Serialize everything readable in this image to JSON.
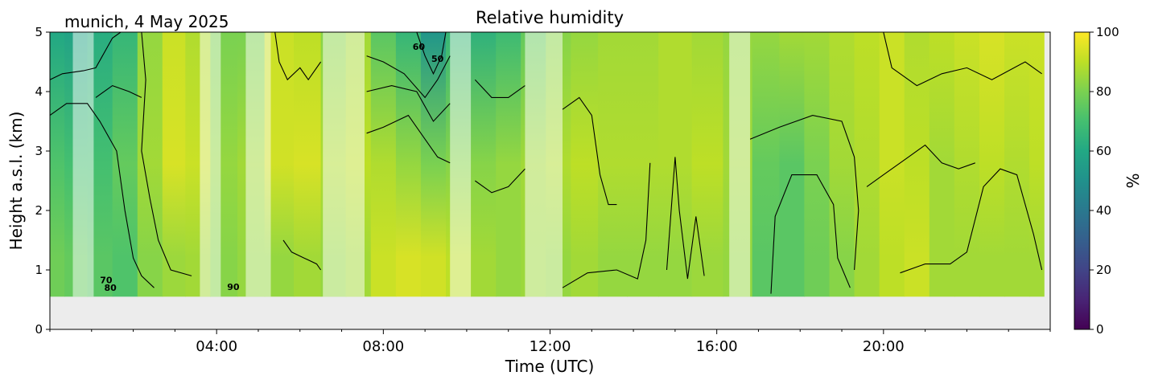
{
  "location_date": "munich, 4 May 2025",
  "chart_data": {
    "type": "heatmap",
    "title": "Relative humidity",
    "xlabel": "Time (UTC)",
    "ylabel": "Height a.s.l. (km)",
    "x_unit": "hours UTC",
    "xlim": [
      0,
      24
    ],
    "ylim": [
      0,
      5
    ],
    "x_ticks": [
      {
        "value": 4,
        "label": "04:00"
      },
      {
        "value": 8,
        "label": "08:00"
      },
      {
        "value": 12,
        "label": "12:00"
      },
      {
        "value": 16,
        "label": "16:00"
      },
      {
        "value": 20,
        "label": "20:00"
      }
    ],
    "y_ticks": [
      {
        "value": 0,
        "label": "0"
      },
      {
        "value": 1,
        "label": "1"
      },
      {
        "value": 2,
        "label": "2"
      },
      {
        "value": 3,
        "label": "3"
      },
      {
        "value": 4,
        "label": "4"
      },
      {
        "value": 5,
        "label": "5"
      }
    ],
    "colorbar": {
      "label": "%",
      "range": [
        0,
        100
      ],
      "ticks": [
        "0",
        "20",
        "40",
        "60",
        "80",
        "100"
      ],
      "colormap": "viridis"
    },
    "data_bottom_km": 0.55,
    "data_end_hour": 23.85,
    "columns": [
      {
        "t": 0.1,
        "low": 78,
        "mid": 72,
        "top": 60
      },
      {
        "t": 0.6,
        "low": 76,
        "mid": 70,
        "top": 58
      },
      {
        "t": 1.2,
        "low": 74,
        "mid": 70,
        "top": 62
      },
      {
        "t": 1.8,
        "low": 72,
        "mid": 76,
        "top": 66
      },
      {
        "t": 2.4,
        "low": 82,
        "mid": 86,
        "top": 84
      },
      {
        "t": 3.0,
        "low": 85,
        "mid": 94,
        "top": 92
      },
      {
        "t": 3.5,
        "low": 86,
        "mid": 92,
        "top": 88
      },
      {
        "t": 4.2,
        "low": 82,
        "mid": 84,
        "top": 80
      },
      {
        "t": 4.8,
        "low": 84,
        "mid": 86,
        "top": 80
      },
      {
        "t": 5.5,
        "low": 84,
        "mid": 93,
        "top": 92
      },
      {
        "t": 6.2,
        "low": 86,
        "mid": 94,
        "top": 90
      },
      {
        "t": 6.8,
        "low": 84,
        "mid": 88,
        "top": 82
      },
      {
        "t": 7.4,
        "low": 86,
        "mid": 90,
        "top": 86
      },
      {
        "t": 8.0,
        "low": 92,
        "mid": 88,
        "top": 74
      },
      {
        "t": 8.6,
        "low": 94,
        "mid": 84,
        "top": 66
      },
      {
        "t": 9.2,
        "low": 93,
        "mid": 80,
        "top": 52
      },
      {
        "t": 9.8,
        "low": 90,
        "mid": 82,
        "top": 66
      },
      {
        "t": 10.4,
        "low": 86,
        "mid": 82,
        "top": 64
      },
      {
        "t": 11.0,
        "low": 84,
        "mid": 84,
        "top": 68
      },
      {
        "t": 11.6,
        "low": 85,
        "mid": 86,
        "top": 76
      },
      {
        "t": 12.2,
        "low": 84,
        "mid": 88,
        "top": 82
      },
      {
        "t": 12.8,
        "low": 86,
        "mid": 90,
        "top": 84
      },
      {
        "t": 13.5,
        "low": 84,
        "mid": 88,
        "top": 86
      },
      {
        "t": 14.2,
        "low": 84,
        "mid": 88,
        "top": 86
      },
      {
        "t": 15.0,
        "low": 84,
        "mid": 88,
        "top": 88
      },
      {
        "t": 15.8,
        "low": 85,
        "mid": 90,
        "top": 86
      },
      {
        "t": 16.5,
        "low": 84,
        "mid": 86,
        "top": 84
      },
      {
        "t": 17.2,
        "low": 74,
        "mid": 76,
        "top": 84
      },
      {
        "t": 17.8,
        "low": 74,
        "mid": 74,
        "top": 86
      },
      {
        "t": 18.4,
        "low": 78,
        "mid": 80,
        "top": 86
      },
      {
        "t": 19.0,
        "low": 82,
        "mid": 86,
        "top": 88
      },
      {
        "t": 19.6,
        "low": 86,
        "mid": 88,
        "top": 90
      },
      {
        "t": 20.2,
        "low": 90,
        "mid": 92,
        "top": 92
      },
      {
        "t": 20.8,
        "low": 92,
        "mid": 90,
        "top": 88
      },
      {
        "t": 21.4,
        "low": 86,
        "mid": 86,
        "top": 90
      },
      {
        "t": 22.0,
        "low": 86,
        "mid": 88,
        "top": 92
      },
      {
        "t": 22.6,
        "low": 86,
        "mid": 90,
        "top": 94
      },
      {
        "t": 23.2,
        "low": 86,
        "mid": 88,
        "top": 92
      },
      {
        "t": 23.8,
        "low": 86,
        "mid": 90,
        "top": 92
      }
    ],
    "masked_intervals": [
      [
        0.55,
        1.05
      ],
      [
        3.6,
        4.1
      ],
      [
        4.7,
        5.3
      ],
      [
        6.55,
        7.55
      ],
      [
        9.6,
        10.1
      ],
      [
        11.4,
        12.3
      ],
      [
        16.3,
        16.8
      ]
    ],
    "contour_labels": [
      {
        "text": "70",
        "t": 1.35,
        "h": 0.78
      },
      {
        "text": "80",
        "t": 1.45,
        "h": 0.65
      },
      {
        "text": "90",
        "t": 4.4,
        "h": 0.66
      },
      {
        "text": "60",
        "t": 8.85,
        "h": 4.7
      },
      {
        "text": "50",
        "t": 9.3,
        "h": 4.5
      }
    ],
    "contour_traces": [
      [
        [
          0,
          4.2
        ],
        [
          0.3,
          4.3
        ],
        [
          0.8,
          4.35
        ],
        [
          1.1,
          4.4
        ],
        [
          1.5,
          4.9
        ],
        [
          1.7,
          5.0
        ]
      ],
      [
        [
          0,
          3.6
        ],
        [
          0.4,
          3.8
        ],
        [
          0.9,
          3.8
        ],
        [
          1.2,
          3.5
        ],
        [
          1.6,
          3.0
        ],
        [
          1.8,
          2.0
        ],
        [
          2.0,
          1.2
        ],
        [
          2.2,
          0.9
        ],
        [
          2.5,
          0.7
        ]
      ],
      [
        [
          2.2,
          5.0
        ],
        [
          2.3,
          4.2
        ],
        [
          2.2,
          3.0
        ],
        [
          2.4,
          2.2
        ],
        [
          2.6,
          1.5
        ],
        [
          2.9,
          1.0
        ],
        [
          3.4,
          0.9
        ]
      ],
      [
        [
          1.1,
          3.9
        ],
        [
          1.5,
          4.1
        ],
        [
          1.9,
          4.0
        ],
        [
          2.2,
          3.9
        ]
      ],
      [
        [
          5.4,
          5.0
        ],
        [
          5.5,
          4.5
        ],
        [
          5.7,
          4.2
        ],
        [
          6.0,
          4.4
        ],
        [
          6.2,
          4.2
        ],
        [
          6.5,
          4.5
        ]
      ],
      [
        [
          5.6,
          1.5
        ],
        [
          5.8,
          1.3
        ],
        [
          6.1,
          1.2
        ],
        [
          6.4,
          1.1
        ],
        [
          6.5,
          1.0
        ]
      ],
      [
        [
          7.6,
          3.3
        ],
        [
          8.0,
          3.4
        ],
        [
          8.6,
          3.6
        ],
        [
          9.0,
          3.2
        ],
        [
          9.3,
          2.9
        ],
        [
          9.6,
          2.8
        ]
      ],
      [
        [
          7.6,
          4.0
        ],
        [
          8.2,
          4.1
        ],
        [
          8.8,
          4.0
        ],
        [
          9.2,
          3.5
        ],
        [
          9.6,
          3.8
        ]
      ],
      [
        [
          7.6,
          4.6
        ],
        [
          8.0,
          4.5
        ],
        [
          8.5,
          4.3
        ],
        [
          9.0,
          3.9
        ],
        [
          9.3,
          4.2
        ],
        [
          9.6,
          4.6
        ]
      ],
      [
        [
          8.8,
          5.0
        ],
        [
          9.0,
          4.6
        ],
        [
          9.2,
          4.3
        ],
        [
          9.4,
          4.6
        ],
        [
          9.5,
          5.0
        ]
      ],
      [
        [
          10.2,
          2.5
        ],
        [
          10.6,
          2.3
        ],
        [
          11.0,
          2.4
        ],
        [
          11.4,
          2.7
        ]
      ],
      [
        [
          10.2,
          4.2
        ],
        [
          10.6,
          3.9
        ],
        [
          11.0,
          3.9
        ],
        [
          11.4,
          4.1
        ]
      ],
      [
        [
          12.3,
          3.7
        ],
        [
          12.7,
          3.9
        ],
        [
          13.0,
          3.6
        ],
        [
          13.2,
          2.6
        ],
        [
          13.4,
          2.1
        ],
        [
          13.6,
          2.1
        ]
      ],
      [
        [
          12.3,
          0.7
        ],
        [
          12.9,
          0.95
        ],
        [
          13.6,
          1.0
        ],
        [
          14.1,
          0.85
        ],
        [
          14.3,
          1.5
        ],
        [
          14.4,
          2.8
        ]
      ],
      [
        [
          14.8,
          1.0
        ],
        [
          15.0,
          2.9
        ],
        [
          15.1,
          2.0
        ],
        [
          15.3,
          0.85
        ],
        [
          15.5,
          1.9
        ],
        [
          15.7,
          0.9
        ]
      ],
      [
        [
          16.8,
          3.2
        ],
        [
          17.5,
          3.4
        ],
        [
          18.3,
          3.6
        ],
        [
          19.0,
          3.5
        ],
        [
          19.3,
          2.9
        ],
        [
          19.4,
          2.0
        ],
        [
          19.3,
          1.0
        ]
      ],
      [
        [
          17.3,
          0.6
        ],
        [
          17.4,
          1.9
        ],
        [
          17.8,
          2.6
        ],
        [
          18.4,
          2.6
        ],
        [
          18.8,
          2.1
        ],
        [
          18.9,
          1.2
        ],
        [
          19.2,
          0.7
        ]
      ],
      [
        [
          19.6,
          2.4
        ],
        [
          20.0,
          2.6
        ],
        [
          20.6,
          2.9
        ],
        [
          21.0,
          3.1
        ],
        [
          21.4,
          2.8
        ],
        [
          21.8,
          2.7
        ],
        [
          22.2,
          2.8
        ]
      ],
      [
        [
          20.0,
          5.0
        ],
        [
          20.2,
          4.4
        ],
        [
          20.8,
          4.1
        ],
        [
          21.4,
          4.3
        ],
        [
          22.0,
          4.4
        ],
        [
          22.6,
          4.2
        ],
        [
          23.4,
          4.5
        ],
        [
          23.8,
          4.3
        ]
      ],
      [
        [
          20.4,
          0.95
        ],
        [
          21.0,
          1.1
        ],
        [
          21.6,
          1.1
        ],
        [
          22.0,
          1.3
        ],
        [
          22.4,
          2.4
        ],
        [
          22.8,
          2.7
        ],
        [
          23.2,
          2.6
        ],
        [
          23.6,
          1.6
        ],
        [
          23.8,
          1.0
        ]
      ]
    ]
  }
}
